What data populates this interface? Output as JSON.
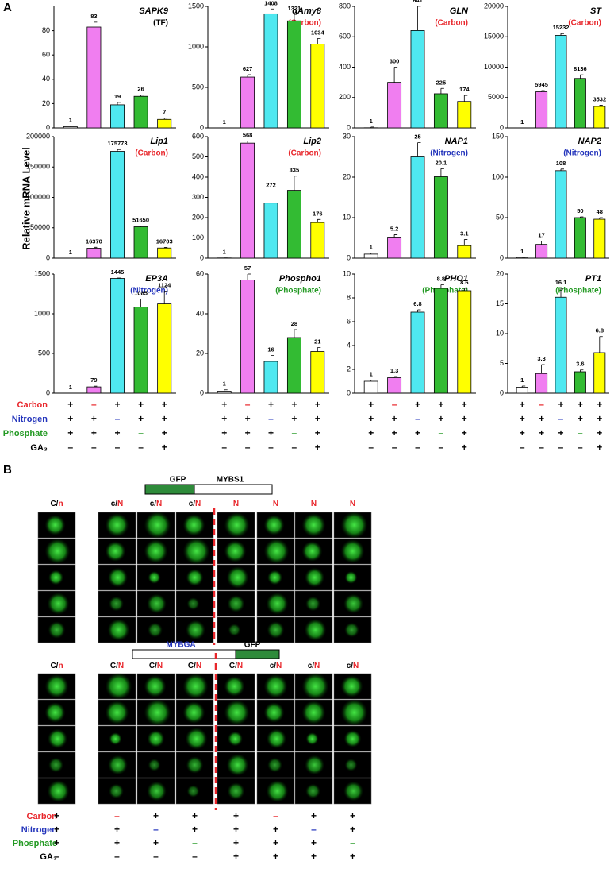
{
  "panel_a_label": "A",
  "y_label": "Relative mRNA Level",
  "chart_data": [
    {
      "type": "bar",
      "title": "SAPK9",
      "subtitle": "(TF)",
      "subtitle_color": "#000000",
      "values": [
        1,
        83,
        19,
        26,
        7
      ],
      "errors": [
        0.5,
        4,
        2,
        1,
        1
      ],
      "colors": [
        "#ffffff",
        "#f07ef0",
        "#4fe8f0",
        "#33bb33",
        "#ffff00"
      ],
      "ylim": [
        0,
        100
      ],
      "yticks": [
        0,
        20,
        40,
        60,
        80
      ]
    },
    {
      "type": "bar",
      "title": "αAmy8",
      "subtitle": "(Carbon)",
      "subtitle_color": "#e8262b",
      "values": [
        1,
        627,
        1408,
        1321,
        1034
      ],
      "errors": [
        0,
        30,
        60,
        80,
        70
      ],
      "colors": [
        "#ffffff",
        "#f07ef0",
        "#4fe8f0",
        "#33bb33",
        "#ffff00"
      ],
      "ylim": [
        0,
        1500
      ],
      "yticks": [
        0,
        500,
        1000,
        1500
      ]
    },
    {
      "type": "bar",
      "title": "GLN",
      "subtitle": "(Carbon)",
      "subtitle_color": "#e8262b",
      "values": [
        1,
        300,
        641,
        225,
        174
      ],
      "errors": [
        5,
        100,
        160,
        35,
        40
      ],
      "colors": [
        "#ffffff",
        "#f07ef0",
        "#4fe8f0",
        "#33bb33",
        "#ffff00"
      ],
      "ylim": [
        0,
        800
      ],
      "yticks": [
        0,
        200,
        400,
        600,
        800
      ]
    },
    {
      "type": "bar",
      "title": "ST",
      "subtitle": "(Carbon)",
      "subtitle_color": "#e8262b",
      "values": [
        1,
        5945,
        15232,
        8136,
        3532
      ],
      "errors": [
        0,
        200,
        300,
        600,
        200
      ],
      "colors": [
        "#ffffff",
        "#f07ef0",
        "#4fe8f0",
        "#33bb33",
        "#ffff00"
      ],
      "ylim": [
        0,
        20000
      ],
      "yticks": [
        0,
        5000,
        10000,
        15000,
        20000
      ]
    },
    {
      "type": "bar",
      "title": "Lip1",
      "subtitle": "(Carbon)",
      "subtitle_color": "#e8262b",
      "values": [
        1,
        16370,
        175773,
        51650,
        16703
      ],
      "errors": [
        0,
        1500,
        3000,
        1500,
        1000
      ],
      "colors": [
        "#ffffff",
        "#f07ef0",
        "#4fe8f0",
        "#33bb33",
        "#ffff00"
      ],
      "ylim": [
        0,
        200000
      ],
      "yticks": [
        0,
        50000,
        100000,
        150000,
        200000
      ]
    },
    {
      "type": "bar",
      "title": "Lip2",
      "subtitle": "(Carbon)",
      "subtitle_color": "#e8262b",
      "values": [
        1,
        568,
        272,
        335,
        176
      ],
      "errors": [
        0,
        10,
        60,
        70,
        15
      ],
      "colors": [
        "#ffffff",
        "#f07ef0",
        "#4fe8f0",
        "#33bb33",
        "#ffff00"
      ],
      "ylim": [
        0,
        600
      ],
      "yticks": [
        0,
        100,
        200,
        300,
        400,
        500,
        600
      ]
    },
    {
      "type": "bar",
      "title": "NAP1",
      "subtitle": "(Nitrogen)",
      "subtitle_color": "#2233bb",
      "values": [
        1,
        5.2,
        25,
        20.1,
        3.1
      ],
      "errors": [
        0.3,
        0.6,
        3.5,
        2,
        1.5
      ],
      "colors": [
        "#ffffff",
        "#f07ef0",
        "#4fe8f0",
        "#33bb33",
        "#ffff00"
      ],
      "ylim": [
        0,
        30
      ],
      "yticks": [
        0,
        10,
        20,
        30
      ]
    },
    {
      "type": "bar",
      "title": "NAP2",
      "subtitle": "(Nitrogen)",
      "subtitle_color": "#2233bb",
      "values": [
        1,
        17,
        108,
        50,
        48
      ],
      "errors": [
        0,
        4,
        2,
        1,
        2
      ],
      "colors": [
        "#ffffff",
        "#f07ef0",
        "#4fe8f0",
        "#33bb33",
        "#ffff00"
      ],
      "ylim": [
        0,
        150
      ],
      "yticks": [
        0,
        50,
        100,
        150
      ]
    },
    {
      "type": "bar",
      "title": "EP3A",
      "subtitle": "(Nitrogen)",
      "subtitle_color": "#2233bb",
      "values": [
        1,
        79,
        1445,
        1085,
        1124
      ],
      "errors": [
        0,
        10,
        5,
        100,
        160
      ],
      "colors": [
        "#ffffff",
        "#f07ef0",
        "#4fe8f0",
        "#33bb33",
        "#ffff00"
      ],
      "ylim": [
        0,
        1500
      ],
      "yticks": [
        0,
        500,
        1000,
        1500
      ]
    },
    {
      "type": "bar",
      "title": "Phospho1",
      "subtitle": "(Phosphate)",
      "subtitle_color": "#229922",
      "values": [
        1,
        57,
        16,
        28,
        21
      ],
      "errors": [
        0.7,
        3,
        3,
        4,
        2
      ],
      "colors": [
        "#ffffff",
        "#f07ef0",
        "#4fe8f0",
        "#33bb33",
        "#ffff00"
      ],
      "ylim": [
        0,
        60
      ],
      "yticks": [
        0,
        20,
        40,
        60
      ]
    },
    {
      "type": "bar",
      "title": "PHO1",
      "subtitle": "(Phosphate)",
      "subtitle_color": "#229922",
      "values": [
        1,
        1.3,
        6.8,
        8.8,
        8.6
      ],
      "errors": [
        0.1,
        0.1,
        0.2,
        0.3,
        0.2
      ],
      "colors": [
        "#ffffff",
        "#f07ef0",
        "#4fe8f0",
        "#33bb33",
        "#ffff00"
      ],
      "ylim": [
        0,
        10
      ],
      "yticks": [
        0,
        2,
        4,
        6,
        8,
        10
      ]
    },
    {
      "type": "bar",
      "title": "PT1",
      "subtitle": "(Phosphate)",
      "subtitle_color": "#229922",
      "values": [
        1,
        3.3,
        16.1,
        3.6,
        6.8
      ],
      "errors": [
        0.2,
        1.5,
        1.5,
        0.3,
        2.7
      ],
      "colors": [
        "#ffffff",
        "#f07ef0",
        "#4fe8f0",
        "#33bb33",
        "#ffff00"
      ],
      "ylim": [
        0,
        20
      ],
      "yticks": [
        0,
        5,
        10,
        15,
        20
      ]
    }
  ],
  "conditions_a": {
    "rows": [
      {
        "label": "Carbon",
        "color": "#e8262b",
        "symbols": [
          "+",
          "–",
          "+",
          "+",
          "+"
        ]
      },
      {
        "label": "Nitrogen",
        "color": "#2233bb",
        "symbols": [
          "+",
          "+",
          "–",
          "+",
          "+"
        ]
      },
      {
        "label": "Phosphate",
        "color": "#229922",
        "symbols": [
          "+",
          "+",
          "+",
          "–",
          "+"
        ]
      },
      {
        "label": "GA₃",
        "color": "#000000",
        "symbols": [
          "–",
          "–",
          "–",
          "–",
          "+"
        ]
      }
    ]
  },
  "panel_b": {
    "label": "B",
    "construct_1": {
      "gfp": "GFP",
      "protein": "MYBS1",
      "headers": [
        [
          "C/",
          "n"
        ],
        [
          "c/",
          "N"
        ],
        [
          "c/",
          "N"
        ],
        [
          "c/",
          "N"
        ],
        [
          "N"
        ],
        [
          "N"
        ],
        [
          "N"
        ],
        [
          "N"
        ]
      ]
    },
    "construct_2": {
      "protein": "MYBGA",
      "gfp": "GFP",
      "headers": [
        [
          "C/",
          "n"
        ],
        [
          "C/",
          "N"
        ],
        [
          "C/",
          "N"
        ],
        [
          "C/",
          "N"
        ],
        [
          "C/",
          "N"
        ],
        [
          "c/",
          "N"
        ],
        [
          "c/",
          "N"
        ],
        [
          "c/",
          "N"
        ]
      ]
    },
    "conditions": {
      "rows": [
        {
          "label": "Carbon",
          "color": "#e8262b",
          "symbols": [
            "+",
            "–",
            "+",
            "+",
            "+",
            "–",
            "+",
            "+"
          ]
        },
        {
          "label": "Nitrogen",
          "color": "#2233bb",
          "symbols": [
            "+",
            "+",
            "–",
            "+",
            "+",
            "+",
            "–",
            "+"
          ]
        },
        {
          "label": "Phosphate",
          "color": "#229922",
          "symbols": [
            "+",
            "+",
            "+",
            "–",
            "+",
            "+",
            "+",
            "–"
          ]
        },
        {
          "label": "GA₃",
          "color": "#000000",
          "symbols": [
            "–",
            "–",
            "–",
            "–",
            "+",
            "+",
            "+",
            "+"
          ]
        }
      ]
    }
  }
}
